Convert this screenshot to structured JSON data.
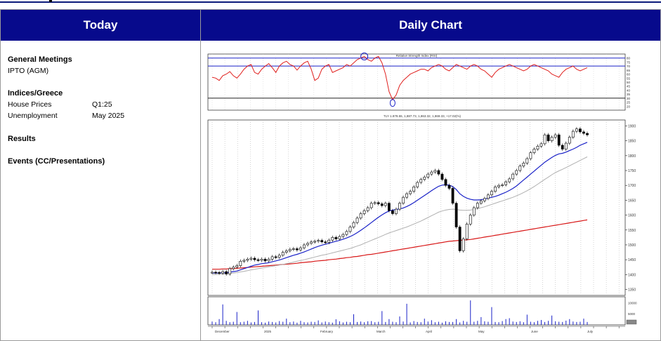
{
  "left_panel": {
    "title": "Today",
    "general_meetings": {
      "title": "General Meetings",
      "items": [
        "IPTO (AGM)"
      ]
    },
    "indices": {
      "title": "Indices/Greece",
      "rows": [
        {
          "label": "House Prices",
          "value": "Q1:25"
        },
        {
          "label": "Unemployment",
          "value": "May 2025"
        }
      ]
    },
    "results": {
      "title": "Results"
    },
    "events": {
      "title": "Events (CC/Presentations)"
    }
  },
  "right_panel": {
    "title": "Daily Chart"
  },
  "colors": {
    "header_bg": "#070a8c",
    "rsi_line": "#e0201e",
    "ma_short": "#1a22c8",
    "ma_mid": "#b0b0b0",
    "ma_long": "#d81818",
    "volume": "#1a22c8"
  },
  "chart_data": {
    "type": "line",
    "panels": [
      "rsi",
      "price-candlestick",
      "volume"
    ],
    "rsi": {
      "title": "Relative Strength Index (RSI)",
      "levels": [
        80,
        70,
        30
      ],
      "y_ticks": [
        "80",
        "75",
        "70",
        "65",
        "60",
        "55",
        "50",
        "45",
        "40",
        "35",
        "30",
        "25",
        "20"
      ]
    },
    "price": {
      "caption": "TLY 1.878.55, 1,887.73, 1,863.32, 1,869.33, +17.02(%)",
      "y_ticks": [
        "1900",
        "1850",
        "1800",
        "1750",
        "1700",
        "1650",
        "1600",
        "1550",
        "1500",
        "1450",
        "1400",
        "1350"
      ],
      "ylim": [
        1330,
        1920
      ],
      "close": [
        1408,
        1407,
        1405,
        1410,
        1402,
        1420,
        1425,
        1430,
        1445,
        1448,
        1452,
        1455,
        1450,
        1448,
        1452,
        1446,
        1452,
        1460,
        1458,
        1465,
        1475,
        1480,
        1485,
        1487,
        1483,
        1490,
        1500,
        1505,
        1510,
        1512,
        1515,
        1510,
        1508,
        1516,
        1525,
        1520,
        1528,
        1535,
        1545,
        1560,
        1575,
        1590,
        1605,
        1615,
        1625,
        1640,
        1642,
        1638,
        1632,
        1640,
        1615,
        1605,
        1620,
        1640,
        1660,
        1672,
        1680,
        1695,
        1710,
        1720,
        1728,
        1738,
        1745,
        1750,
        1738,
        1720,
        1700,
        1690,
        1640,
        1560,
        1480,
        1520,
        1570,
        1600,
        1625,
        1640,
        1648,
        1656,
        1668,
        1680,
        1695,
        1700,
        1702,
        1712,
        1722,
        1738,
        1750,
        1765,
        1775,
        1790,
        1810,
        1822,
        1832,
        1840,
        1870,
        1850,
        1862,
        1870,
        1835,
        1822,
        1842,
        1862,
        1882,
        1890,
        1880,
        1875,
        1870
      ],
      "ma_short": [
        1405,
        1405,
        1405,
        1406,
        1406,
        1408,
        1410,
        1412,
        1416,
        1420,
        1424,
        1428,
        1432,
        1434,
        1437,
        1438,
        1440,
        1443,
        1446,
        1449,
        1453,
        1457,
        1461,
        1465,
        1468,
        1472,
        1476,
        1481,
        1486,
        1491,
        1495,
        1499,
        1502,
        1505,
        1509,
        1512,
        1515,
        1519,
        1523,
        1528,
        1534,
        1541,
        1549,
        1557,
        1566,
        1575,
        1584,
        1593,
        1601,
        1608,
        1614,
        1617,
        1619,
        1621,
        1624,
        1629,
        1635,
        1642,
        1650,
        1658,
        1666,
        1674,
        1682,
        1690,
        1697,
        1701,
        1702,
        1701,
        1696,
        1686,
        1672,
        1663,
        1657,
        1653,
        1651,
        1651,
        1652,
        1654,
        1657,
        1660,
        1663,
        1667,
        1672,
        1677,
        1683,
        1690,
        1698,
        1708,
        1718,
        1728,
        1738,
        1748,
        1758,
        1768,
        1778,
        1786,
        1794,
        1801,
        1806,
        1808,
        1812,
        1817,
        1822,
        1828,
        1835,
        1840,
        1845
      ],
      "ma_mid": [
        1400,
        1400,
        1401,
        1402,
        1402,
        1404,
        1405,
        1407,
        1409,
        1411,
        1413,
        1416,
        1418,
        1420,
        1422,
        1424,
        1426,
        1428,
        1430,
        1432,
        1434,
        1437,
        1439,
        1442,
        1445,
        1447,
        1450,
        1453,
        1456,
        1459,
        1462,
        1465,
        1467,
        1470,
        1473,
        1476,
        1479,
        1482,
        1485,
        1488,
        1492,
        1496,
        1500,
        1505,
        1510,
        1515,
        1520,
        1525,
        1530,
        1535,
        1540,
        1544,
        1548,
        1552,
        1556,
        1560,
        1565,
        1570,
        1575,
        1580,
        1586,
        1592,
        1598,
        1604,
        1610,
        1614,
        1617,
        1619,
        1620,
        1619,
        1617,
        1616,
        1616,
        1617,
        1619,
        1622,
        1625,
        1628,
        1632,
        1636,
        1640,
        1644,
        1648,
        1652,
        1656,
        1660,
        1665,
        1670,
        1676,
        1682,
        1689,
        1696,
        1704,
        1712,
        1720,
        1728,
        1736,
        1743,
        1749,
        1754,
        1760,
        1766,
        1772,
        1778,
        1784,
        1790,
        1796
      ],
      "ma_long": [
        1418,
        1418,
        1418,
        1419,
        1419,
        1420,
        1420,
        1421,
        1422,
        1423,
        1424,
        1425,
        1426,
        1427,
        1428,
        1429,
        1430,
        1431,
        1432,
        1433,
        1434,
        1435,
        1436,
        1437,
        1438,
        1440,
        1441,
        1442,
        1443,
        1445,
        1446,
        1447,
        1448,
        1450,
        1451,
        1452,
        1454,
        1455,
        1457,
        1458,
        1460,
        1461,
        1463,
        1465,
        1467,
        1468,
        1470,
        1472,
        1474,
        1476,
        1478,
        1480,
        1482,
        1484,
        1486,
        1488,
        1490,
        1492,
        1494,
        1496,
        1498,
        1500,
        1502,
        1504,
        1506,
        1508,
        1510,
        1512,
        1513,
        1514,
        1515,
        1516,
        1517,
        1518,
        1520,
        1522,
        1524,
        1526,
        1528,
        1530,
        1532,
        1534,
        1536,
        1538,
        1540,
        1542,
        1544,
        1546,
        1548,
        1550,
        1552,
        1554,
        1556,
        1558,
        1560,
        1562,
        1564,
        1566,
        1568,
        1570,
        1572,
        1574,
        1576,
        1578,
        1580,
        1582,
        1584
      ],
      "rsi": [
        56,
        55,
        52,
        58,
        60,
        63,
        58,
        55,
        60,
        66,
        70,
        72,
        62,
        60,
        66,
        70,
        73,
        68,
        62,
        70,
        74,
        76,
        72,
        70,
        65,
        70,
        74,
        76,
        66,
        52,
        55,
        66,
        70,
        72,
        62,
        64,
        66,
        68,
        72,
        70,
        74,
        78,
        80,
        82,
        78,
        76,
        80,
        82,
        74,
        60,
        38,
        28,
        34,
        46,
        52,
        56,
        60,
        62,
        64,
        66,
        66,
        64,
        68,
        70,
        72,
        70,
        66,
        64,
        68,
        72,
        70,
        68,
        66,
        70,
        72,
        70,
        66,
        64,
        60,
        56,
        62,
        66,
        68,
        70,
        72,
        70,
        68,
        66,
        64,
        66,
        70,
        72,
        70,
        68,
        66,
        64,
        60,
        58,
        56,
        62,
        66,
        68,
        70,
        66,
        64,
        66,
        68
      ],
      "x_axis_labels": [
        "December",
        "2025",
        "February",
        "March",
        "April",
        "May",
        "June",
        "July"
      ]
    },
    "volume": {
      "y_ticks": [
        "10000",
        "5000"
      ],
      "values": [
        1500,
        1200,
        2600,
        9200,
        1800,
        1200,
        1400,
        5800,
        1200,
        1400,
        1800,
        1100,
        1300,
        6500,
        1200,
        1000,
        1500,
        1300,
        1100,
        1700,
        1400,
        2800,
        1200,
        1500,
        1000,
        1800,
        1200,
        1100,
        1400,
        1300,
        2000,
        1100,
        1500,
        1200,
        1000,
        2500,
        1600,
        1100,
        1400,
        1200,
        4800,
        1300,
        1500,
        1200,
        1600,
        1700,
        1200,
        1400,
        6200,
        1300,
        2600,
        1400,
        1200,
        3800,
        1500,
        9500,
        1100,
        1700,
        1300,
        1200,
        2800,
        1500,
        2100,
        1200,
        1400,
        1000,
        1600,
        1300,
        1300,
        2600,
        1100,
        1800,
        1400,
        11000,
        1400,
        1800,
        3500,
        1600,
        1400,
        8000,
        1300,
        1200,
        1700,
        2600,
        3000,
        1500,
        1300,
        1600,
        1200,
        4600,
        1400,
        1200,
        1800,
        2200,
        1300,
        1800,
        4200,
        1600,
        1400,
        1300,
        1900,
        2600,
        1500,
        1300,
        1400,
        2800,
        1300
      ]
    }
  }
}
